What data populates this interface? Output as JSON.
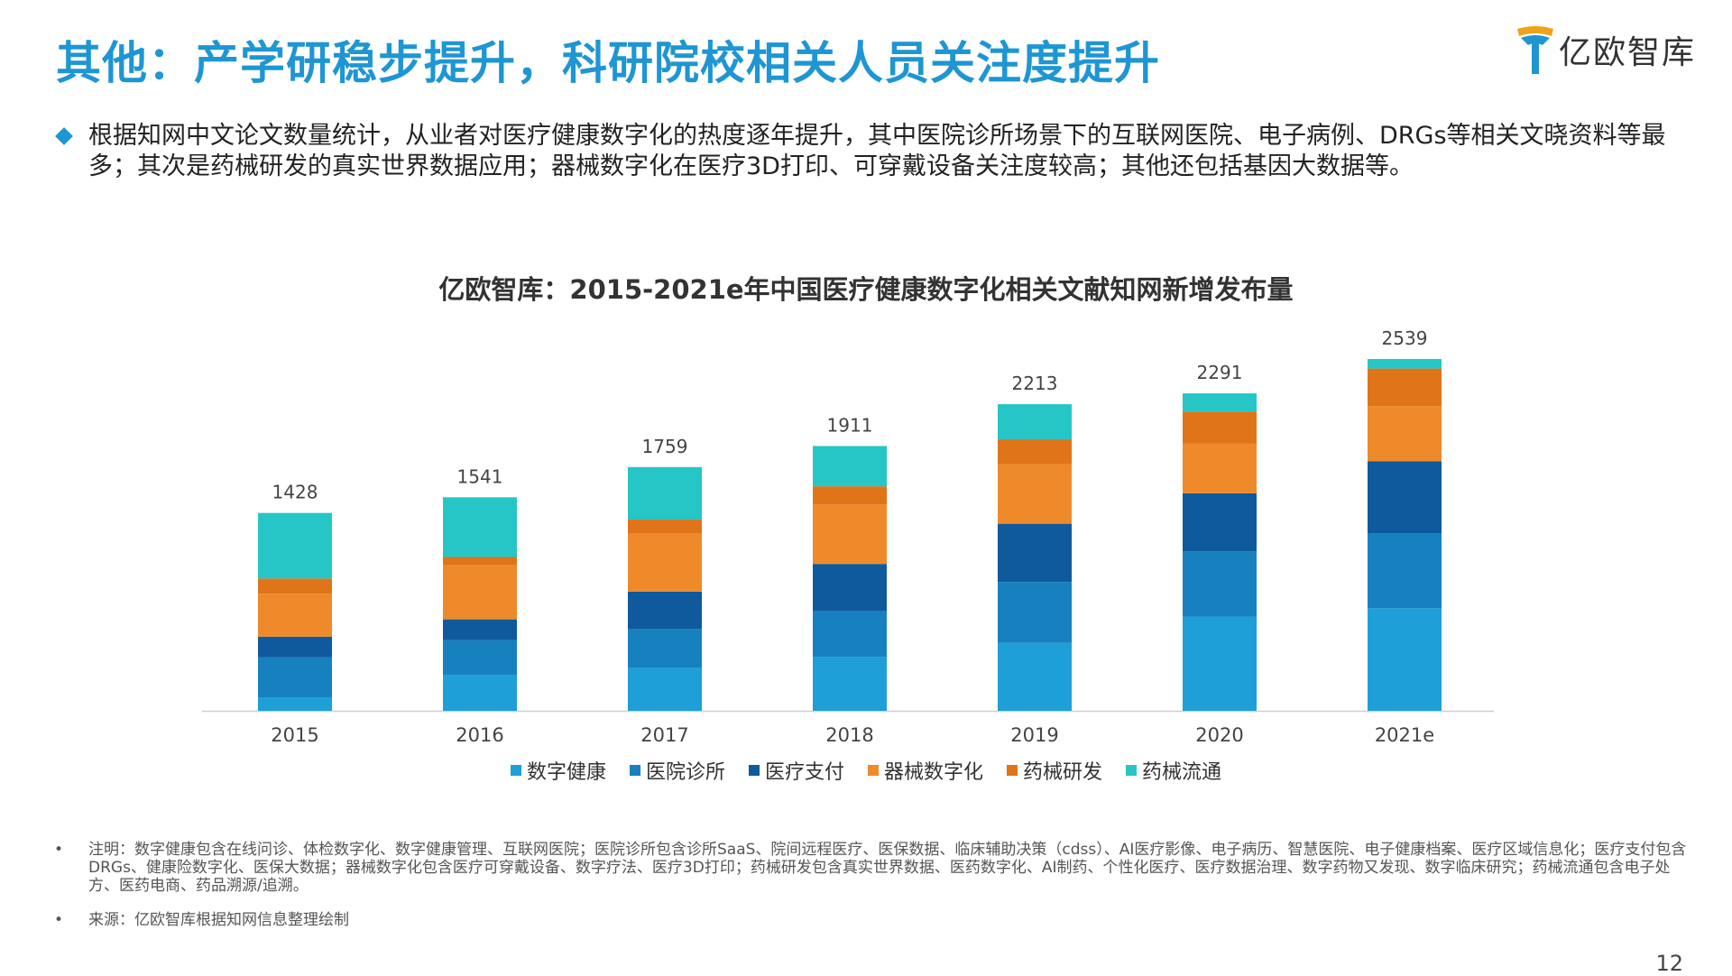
{
  "header": {
    "title": "其他：产学研稳步提升，科研院校相关人员关注度提升",
    "logo_text": "亿欧智库"
  },
  "summary": {
    "text": "根据知网中文论文数量统计，从业者对医疗健康数字化的热度逐年提升，其中医院诊所场景下的互联网医院、电子病例、DRGs等相关文晓资料等最多；其次是药械研发的真实世界数据应用；器械数字化在医疗3D打印、可穿戴设备关注度较高；其他还包括基因大数据等。"
  },
  "chart_data": {
    "type": "bar",
    "stacked": true,
    "title": "亿欧智库：2015-2021e年中国医疗健康数字化相关文献知网新增发布量",
    "categories": [
      "2015",
      "2016",
      "2017",
      "2018",
      "2019",
      "2020",
      "2021e"
    ],
    "totals": [
      1428,
      1541,
      1759,
      1911,
      2213,
      2291,
      2539
    ],
    "series": [
      {
        "name": "数字健康",
        "color": "#1e9fd8",
        "values": [
          95,
          260,
          310,
          390,
          490,
          680,
          740
        ]
      },
      {
        "name": "医院诊所",
        "color": "#1781bf",
        "values": [
          290,
          250,
          280,
          330,
          440,
          470,
          540
        ]
      },
      {
        "name": "医疗支付",
        "color": "#0f5a9c",
        "values": [
          150,
          150,
          270,
          340,
          420,
          420,
          520
        ]
      },
      {
        "name": "器械数字化",
        "color": "#ee8a2a",
        "values": [
          310,
          390,
          420,
          430,
          430,
          360,
          400
        ]
      },
      {
        "name": "药械研发",
        "color": "#e07418",
        "values": [
          110,
          60,
          100,
          130,
          180,
          230,
          270
        ]
      },
      {
        "name": "药械流通",
        "color": "#26c6c6",
        "values": [
          473,
          431,
          379,
          291,
          253,
          131,
          69
        ]
      }
    ],
    "ylim": [
      0,
      2539
    ],
    "grid": false,
    "legend_position": "bottom"
  },
  "notes": {
    "note_text": "注明：数字健康包含在线问诊、体检数字化、数字健康管理、互联网医院；医院诊所包含诊所SaaS、院间远程医疗、医保数据、临床辅助决策（cdss）、AI医疗影像、电子病历、智慧医院、电子健康档案、医疗区域信息化；医疗支付包含DRGs、健康险数字化、医保大数据；器械数字化包含医疗可穿戴设备、数字疗法、医疗3D打印；药械研发包含真实世界数据、医药数字化、AI制药、个性化医疗、医疗数据治理、数字药物又发现、数字临床研究；药械流通包含电子处方、医药电商、药品溯源/追溯。",
    "source_text": "来源：亿欧智库根据知网信息整理绘制",
    "bullet": "•"
  },
  "page_number": "12"
}
